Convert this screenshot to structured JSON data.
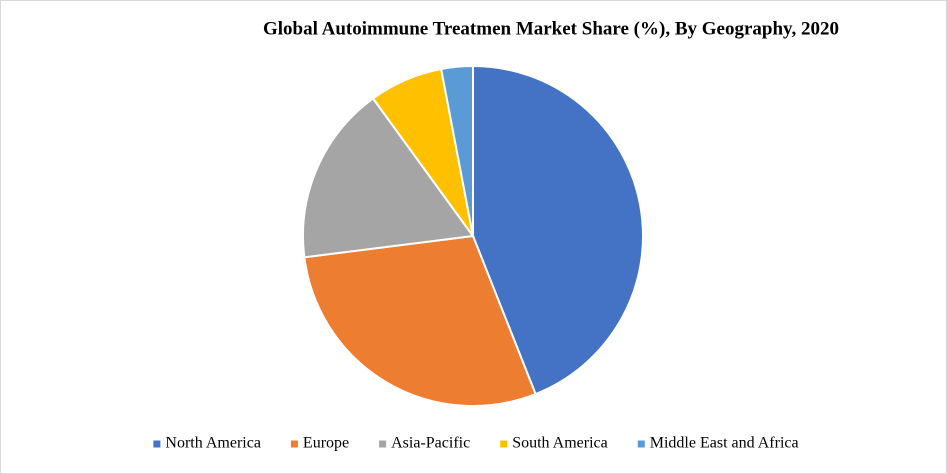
{
  "chart_data": {
    "type": "pie",
    "title": "Global Autoimmune Treatmen Market Share (%), By Geography, 2020",
    "categories": [
      "North America",
      "Europe",
      "Asia-Pacific",
      "South America",
      "Middle East and Africa"
    ],
    "values": [
      44,
      29,
      17,
      7,
      3
    ],
    "colors": [
      "#4472c4",
      "#ed7d31",
      "#a5a5a5",
      "#ffc000",
      "#5b9bd5"
    ],
    "legend": "bottom"
  }
}
